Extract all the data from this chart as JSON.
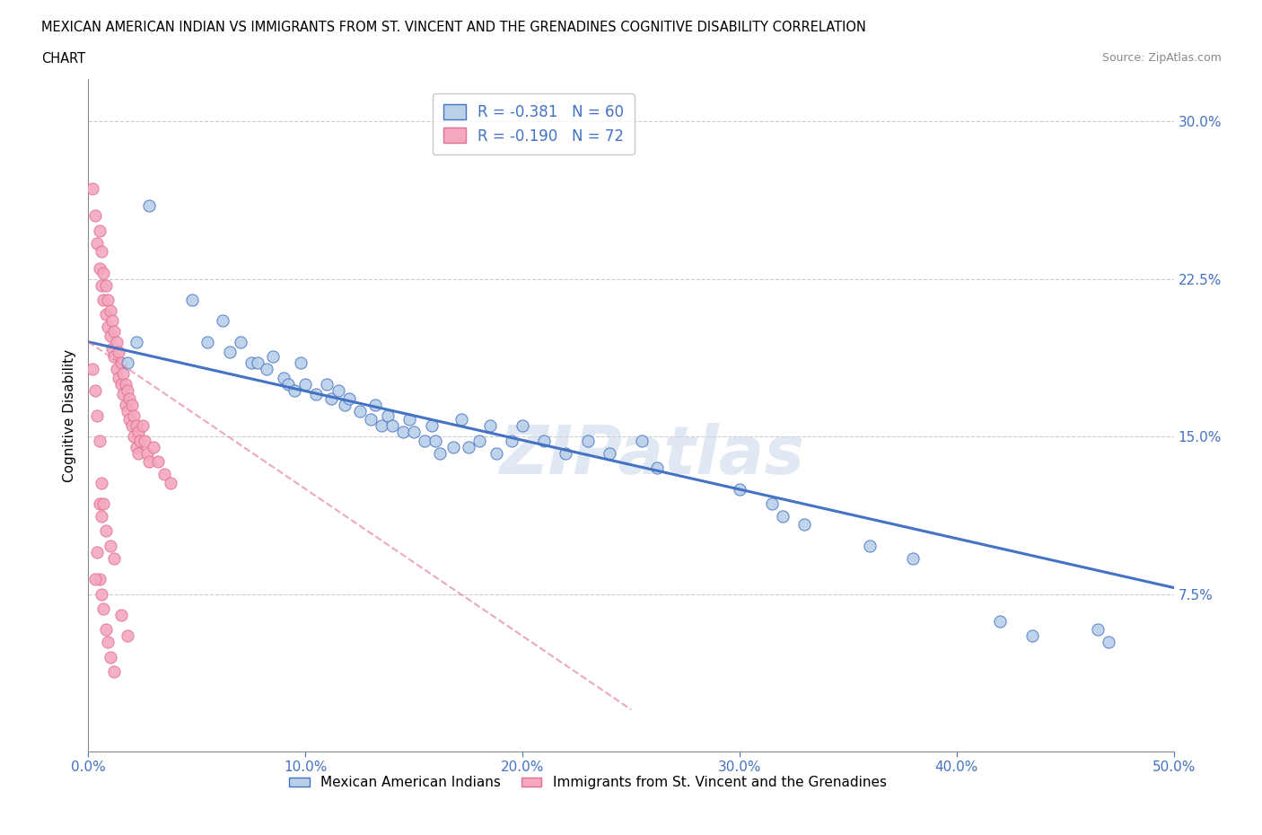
{
  "title_line1": "MEXICAN AMERICAN INDIAN VS IMMIGRANTS FROM ST. VINCENT AND THE GRENADINES COGNITIVE DISABILITY CORRELATION",
  "title_line2": "CHART",
  "source": "Source: ZipAtlas.com",
  "ylabel": "Cognitive Disability",
  "xlim": [
    0.0,
    0.5
  ],
  "ylim": [
    0.0,
    0.32
  ],
  "xticks": [
    0.0,
    0.1,
    0.2,
    0.3,
    0.4,
    0.5
  ],
  "xticklabels": [
    "0.0%",
    "10.0%",
    "20.0%",
    "30.0%",
    "40.0%",
    "50.0%"
  ],
  "yticks": [
    0.075,
    0.15,
    0.225,
    0.3
  ],
  "yticklabels": [
    "7.5%",
    "15.0%",
    "22.5%",
    "30.0%"
  ],
  "hlines": [
    0.075,
    0.15,
    0.225,
    0.3
  ],
  "blue_fill": "#b8d0e8",
  "blue_edge": "#4472c4",
  "pink_fill": "#f4a8c0",
  "pink_edge": "#e07090",
  "blue_line_color": "#4472c4",
  "pink_line_color": "#e07090",
  "axis_color": "#4472c4",
  "R_blue": -0.381,
  "N_blue": 60,
  "R_pink": -0.19,
  "N_pink": 72,
  "legend_label_blue": "Mexican American Indians",
  "legend_label_pink": "Immigrants from St. Vincent and the Grenadines",
  "watermark": "ZIPatlas",
  "blue_scatter": [
    [
      0.018,
      0.185
    ],
    [
      0.022,
      0.195
    ],
    [
      0.028,
      0.26
    ],
    [
      0.048,
      0.215
    ],
    [
      0.055,
      0.195
    ],
    [
      0.062,
      0.205
    ],
    [
      0.065,
      0.19
    ],
    [
      0.07,
      0.195
    ],
    [
      0.075,
      0.185
    ],
    [
      0.078,
      0.185
    ],
    [
      0.082,
      0.182
    ],
    [
      0.085,
      0.188
    ],
    [
      0.09,
      0.178
    ],
    [
      0.092,
      0.175
    ],
    [
      0.095,
      0.172
    ],
    [
      0.098,
      0.185
    ],
    [
      0.1,
      0.175
    ],
    [
      0.105,
      0.17
    ],
    [
      0.11,
      0.175
    ],
    [
      0.112,
      0.168
    ],
    [
      0.115,
      0.172
    ],
    [
      0.118,
      0.165
    ],
    [
      0.12,
      0.168
    ],
    [
      0.125,
      0.162
    ],
    [
      0.13,
      0.158
    ],
    [
      0.132,
      0.165
    ],
    [
      0.135,
      0.155
    ],
    [
      0.138,
      0.16
    ],
    [
      0.14,
      0.155
    ],
    [
      0.145,
      0.152
    ],
    [
      0.148,
      0.158
    ],
    [
      0.15,
      0.152
    ],
    [
      0.155,
      0.148
    ],
    [
      0.158,
      0.155
    ],
    [
      0.16,
      0.148
    ],
    [
      0.162,
      0.142
    ],
    [
      0.168,
      0.145
    ],
    [
      0.172,
      0.158
    ],
    [
      0.175,
      0.145
    ],
    [
      0.18,
      0.148
    ],
    [
      0.185,
      0.155
    ],
    [
      0.188,
      0.142
    ],
    [
      0.195,
      0.148
    ],
    [
      0.2,
      0.155
    ],
    [
      0.21,
      0.148
    ],
    [
      0.22,
      0.142
    ],
    [
      0.23,
      0.148
    ],
    [
      0.24,
      0.142
    ],
    [
      0.255,
      0.148
    ],
    [
      0.262,
      0.135
    ],
    [
      0.3,
      0.125
    ],
    [
      0.315,
      0.118
    ],
    [
      0.32,
      0.112
    ],
    [
      0.33,
      0.108
    ],
    [
      0.36,
      0.098
    ],
    [
      0.38,
      0.092
    ],
    [
      0.42,
      0.062
    ],
    [
      0.435,
      0.055
    ],
    [
      0.465,
      0.058
    ],
    [
      0.47,
      0.052
    ]
  ],
  "pink_scatter": [
    [
      0.002,
      0.268
    ],
    [
      0.003,
      0.255
    ],
    [
      0.004,
      0.242
    ],
    [
      0.005,
      0.248
    ],
    [
      0.005,
      0.23
    ],
    [
      0.006,
      0.238
    ],
    [
      0.006,
      0.222
    ],
    [
      0.007,
      0.228
    ],
    [
      0.007,
      0.215
    ],
    [
      0.008,
      0.222
    ],
    [
      0.008,
      0.208
    ],
    [
      0.009,
      0.215
    ],
    [
      0.009,
      0.202
    ],
    [
      0.01,
      0.21
    ],
    [
      0.01,
      0.198
    ],
    [
      0.011,
      0.205
    ],
    [
      0.011,
      0.192
    ],
    [
      0.012,
      0.2
    ],
    [
      0.012,
      0.188
    ],
    [
      0.013,
      0.195
    ],
    [
      0.013,
      0.182
    ],
    [
      0.014,
      0.19
    ],
    [
      0.014,
      0.178
    ],
    [
      0.015,
      0.185
    ],
    [
      0.015,
      0.175
    ],
    [
      0.016,
      0.18
    ],
    [
      0.016,
      0.17
    ],
    [
      0.017,
      0.175
    ],
    [
      0.017,
      0.165
    ],
    [
      0.018,
      0.172
    ],
    [
      0.018,
      0.162
    ],
    [
      0.019,
      0.168
    ],
    [
      0.019,
      0.158
    ],
    [
      0.02,
      0.165
    ],
    [
      0.02,
      0.155
    ],
    [
      0.021,
      0.16
    ],
    [
      0.021,
      0.15
    ],
    [
      0.022,
      0.155
    ],
    [
      0.022,
      0.145
    ],
    [
      0.023,
      0.152
    ],
    [
      0.023,
      0.142
    ],
    [
      0.024,
      0.148
    ],
    [
      0.025,
      0.155
    ],
    [
      0.026,
      0.148
    ],
    [
      0.027,
      0.142
    ],
    [
      0.028,
      0.138
    ],
    [
      0.03,
      0.145
    ],
    [
      0.032,
      0.138
    ],
    [
      0.035,
      0.132
    ],
    [
      0.038,
      0.128
    ],
    [
      0.005,
      0.118
    ],
    [
      0.006,
      0.112
    ],
    [
      0.008,
      0.105
    ],
    [
      0.01,
      0.098
    ],
    [
      0.012,
      0.092
    ],
    [
      0.005,
      0.082
    ],
    [
      0.006,
      0.075
    ],
    [
      0.007,
      0.068
    ],
    [
      0.008,
      0.058
    ],
    [
      0.009,
      0.052
    ],
    [
      0.01,
      0.045
    ],
    [
      0.012,
      0.038
    ],
    [
      0.015,
      0.065
    ],
    [
      0.018,
      0.055
    ],
    [
      0.004,
      0.16
    ],
    [
      0.005,
      0.148
    ],
    [
      0.003,
      0.172
    ],
    [
      0.002,
      0.182
    ],
    [
      0.006,
      0.128
    ],
    [
      0.007,
      0.118
    ],
    [
      0.004,
      0.095
    ],
    [
      0.003,
      0.082
    ]
  ],
  "blue_line_start_x": 0.0,
  "blue_line_start_y": 0.195,
  "blue_line_end_x": 0.5,
  "blue_line_end_y": 0.078,
  "pink_line_start_x": 0.0,
  "pink_line_start_y": 0.195,
  "pink_line_end_x": 0.25,
  "pink_line_end_y": 0.02
}
